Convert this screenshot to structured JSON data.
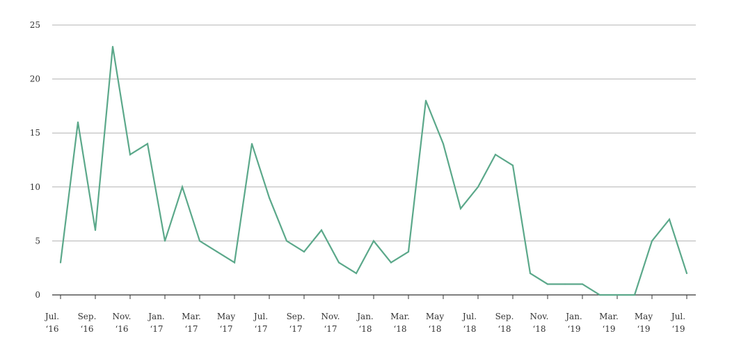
{
  "chart_data": {
    "type": "line",
    "title": "",
    "xlabel": "",
    "ylabel": "",
    "ylim": [
      0,
      25
    ],
    "yticks": [
      0,
      5,
      10,
      15,
      20,
      25
    ],
    "grid": "horizontal",
    "legend": "none",
    "x": [
      "Jul. 2016",
      "Aug. 2016",
      "Sep. 2016",
      "Oct. 2016",
      "Nov. 2016",
      "Dec. 2016",
      "Jan. 2017",
      "Feb. 2017",
      "Mar. 2017",
      "Apr. 2017",
      "May 2017",
      "Jun. 2017",
      "Jul. 2017",
      "Aug. 2017",
      "Sep. 2017",
      "Oct. 2017",
      "Nov. 2017",
      "Dec. 2017",
      "Jan. 2018",
      "Feb. 2018",
      "Mar. 2018",
      "Apr. 2018",
      "May 2018",
      "Jun. 2018",
      "Jul. 2018",
      "Aug. 2018",
      "Sep. 2018",
      "Oct. 2018",
      "Nov. 2018",
      "Dec. 2018",
      "Jan. 2019",
      "Feb. 2019",
      "Mar. 2019",
      "Apr. 2019",
      "May 2019",
      "Jun. 2019",
      "Jul. 2019"
    ],
    "x_tick_labels": [
      {
        "month": "Jul.",
        "year": "‘16"
      },
      {
        "month": "Sep.",
        "year": "‘16"
      },
      {
        "month": "Nov.",
        "year": "‘16"
      },
      {
        "month": "Jan.",
        "year": "‘17"
      },
      {
        "month": "Mar.",
        "year": "‘17"
      },
      {
        "month": "May",
        "year": "‘17"
      },
      {
        "month": "Jul.",
        "year": "‘17"
      },
      {
        "month": "Sep.",
        "year": "‘17"
      },
      {
        "month": "Nov.",
        "year": "‘17"
      },
      {
        "month": "Jan.",
        "year": "‘18"
      },
      {
        "month": "Mar.",
        "year": "‘18"
      },
      {
        "month": "May",
        "year": "‘18"
      },
      {
        "month": "Jul.",
        "year": "‘18"
      },
      {
        "month": "Sep.",
        "year": "‘18"
      },
      {
        "month": "Nov.",
        "year": "‘18"
      },
      {
        "month": "Jan.",
        "year": "‘19"
      },
      {
        "month": "Mar.",
        "year": "‘19"
      },
      {
        "month": "May",
        "year": "‘19"
      },
      {
        "month": "Jul.",
        "year": "‘19"
      }
    ],
    "series": [
      {
        "values": [
          3,
          16,
          6,
          23,
          13,
          14,
          5,
          10,
          5,
          4,
          3,
          14,
          9,
          5,
          4,
          6,
          3,
          2,
          5,
          3,
          4,
          18,
          14,
          8,
          10,
          13,
          12,
          2,
          1,
          1,
          1,
          0,
          0,
          0,
          5,
          7,
          2
        ],
        "color": "#5ba88a"
      }
    ]
  }
}
